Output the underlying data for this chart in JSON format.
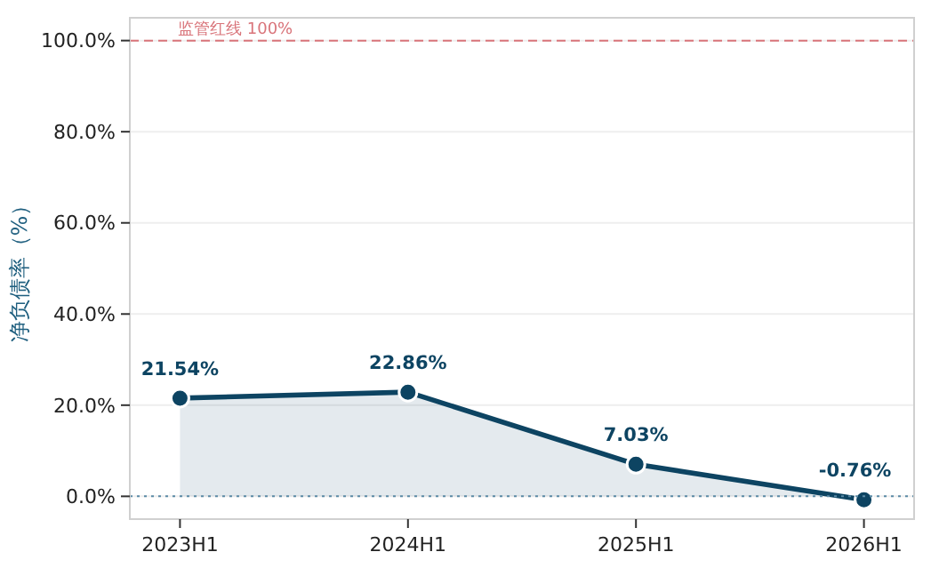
{
  "chart_data": {
    "type": "area",
    "ylabel": "净负债率（%）",
    "categories": [
      "2023H1",
      "2024H1",
      "2025H1",
      "2026H1"
    ],
    "series": [
      {
        "color": "#0d4462",
        "values": [
          21.54,
          22.86,
          7.03,
          -0.76
        ],
        "value_labels": [
          "21.54%",
          "22.86%",
          "7.03%",
          "-0.76%"
        ]
      }
    ],
    "ylim": [
      -5,
      105
    ],
    "yticks": [
      {
        "value": 0,
        "label": "0.0%"
      },
      {
        "value": 20,
        "label": "20.0%"
      },
      {
        "value": 40,
        "label": "40.0%"
      },
      {
        "value": 60,
        "label": "60.0%"
      },
      {
        "value": 80,
        "label": "80.0%"
      },
      {
        "value": 100,
        "label": "100.0%"
      }
    ],
    "grid": "y",
    "marker": "circle",
    "line_style": "solid",
    "ref_lines": [
      {
        "axis": "y",
        "value": 100,
        "label": "监管红线 100%",
        "color": "#d9747a",
        "line_style": "dashed"
      },
      {
        "axis": "y",
        "value": 0,
        "label": null,
        "color": "#5b8aa6",
        "line_style": "dotted"
      }
    ]
  }
}
